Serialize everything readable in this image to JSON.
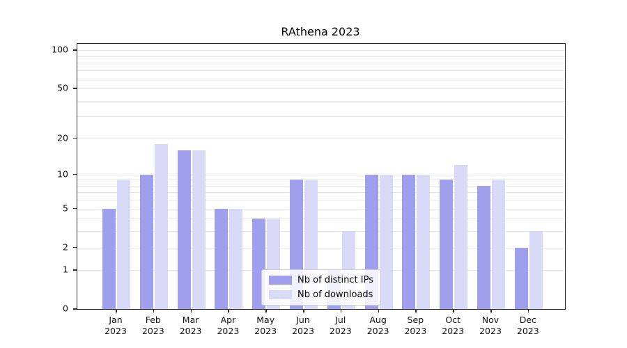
{
  "chart_data": {
    "type": "bar",
    "title": "RAthena 2023",
    "categories": [
      "Jan",
      "Feb",
      "Mar",
      "Apr",
      "May",
      "Jun",
      "Jul",
      "Aug",
      "Sep",
      "Oct",
      "Nov",
      "Dec"
    ],
    "x_tick_second_line": "2023",
    "series": [
      {
        "name": "Nb of distinct IPs",
        "color": "#9f9fee",
        "values": [
          5,
          10,
          16,
          5,
          4,
          9,
          1,
          10,
          10,
          9,
          8,
          2
        ]
      },
      {
        "name": "Nb of downloads",
        "color": "#d9d9f8",
        "values": [
          9,
          18,
          16,
          5,
          4,
          9,
          3,
          10,
          10,
          12,
          9,
          3
        ]
      }
    ],
    "xlabel": "",
    "ylabel": "",
    "yaxis": {
      "scale": "log1p",
      "ticks": [
        0,
        1,
        2,
        5,
        10,
        20,
        50,
        100
      ],
      "gridlines": [
        1,
        2,
        3,
        4,
        5,
        6,
        7,
        8,
        9,
        10,
        20,
        30,
        40,
        50,
        60,
        70,
        80,
        90,
        100
      ],
      "ylim": [
        0,
        112
      ]
    },
    "legend": {
      "position": "lower center"
    },
    "grid": true
  }
}
